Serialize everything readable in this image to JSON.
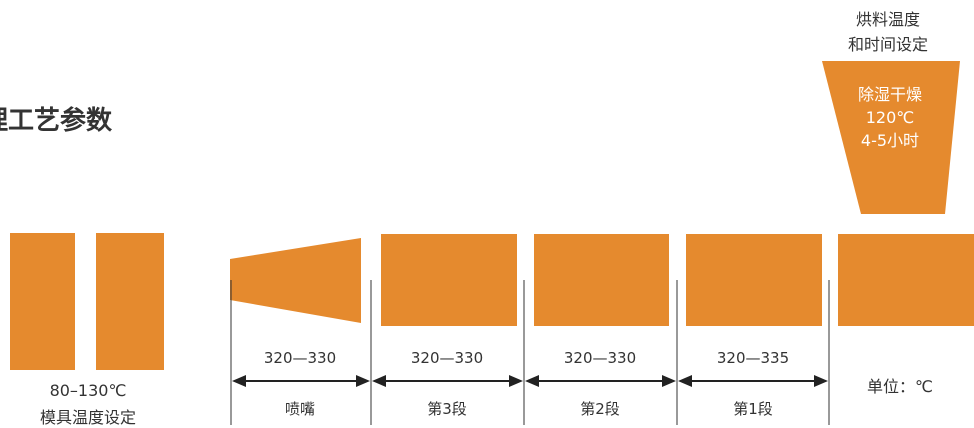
{
  "title": "理工艺参数",
  "hopper": {
    "header_line1": "烘料温度",
    "header_line2": "和时间设定",
    "line1": "除湿干燥",
    "line2": "120℃",
    "line3": "4-5小时"
  },
  "mold": {
    "temp": "80–130℃",
    "label": "模具温度设定"
  },
  "zones": [
    {
      "temp": "320—330",
      "name": "喷嘴"
    },
    {
      "temp": "320—330",
      "name": "第3段"
    },
    {
      "temp": "320—330",
      "name": "第2段"
    },
    {
      "temp": "320—335",
      "name": "第1段"
    }
  ],
  "unit": "单位：℃",
  "colors": {
    "accent": "#e58a2e",
    "text": "#333333"
  }
}
